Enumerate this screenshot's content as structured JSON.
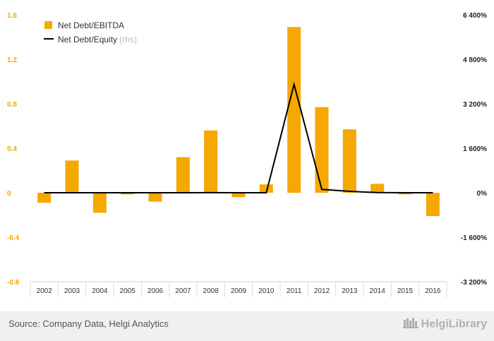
{
  "chart_data": {
    "type": "bar",
    "categories": [
      "2002",
      "2003",
      "2004",
      "2005",
      "2006",
      "2007",
      "2008",
      "2009",
      "2010",
      "2011",
      "2012",
      "2013",
      "2014",
      "2015",
      "2016"
    ],
    "series": [
      {
        "name": "Net Debt/EBITDA",
        "type": "bar",
        "axis": "left",
        "color": "#f5a800",
        "values": [
          -0.09,
          0.29,
          -0.18,
          -0.015,
          -0.08,
          0.32,
          0.56,
          -0.04,
          0.075,
          1.49,
          0.77,
          0.57,
          0.08,
          -0.015,
          -0.21
        ]
      },
      {
        "name": "Net Debt/Equity",
        "name_suffix": "(rhs)",
        "type": "line",
        "axis": "right",
        "color": "#000000",
        "values": [
          0.3,
          1.5,
          0,
          0,
          0,
          0.8,
          2.5,
          -0.5,
          0,
          3900,
          120,
          50,
          5,
          0,
          -1
        ]
      }
    ],
    "left_axis": {
      "ylim": [
        -0.8,
        1.6
      ],
      "ticks": [
        "-0.8",
        "-0.4",
        "0",
        "0.4",
        "0.8",
        "1.2",
        "1.6"
      ],
      "tick_values": [
        -0.8,
        -0.4,
        0,
        0.4,
        0.8,
        1.2,
        1.6
      ]
    },
    "right_axis": {
      "ylim": [
        -3200,
        6400
      ],
      "ticks": [
        "-3 200%",
        "-1 600%",
        "0%",
        "1 600%",
        "3 200%",
        "4 800%",
        "6 400%"
      ],
      "tick_values": [
        -3200,
        -1600,
        0,
        1600,
        3200,
        4800,
        6400
      ]
    },
    "legend_placement": "top-left",
    "grid": false
  },
  "footer": {
    "source": "Source: Company Data, Helgi Analytics",
    "logo": "HelgiLibrary"
  }
}
